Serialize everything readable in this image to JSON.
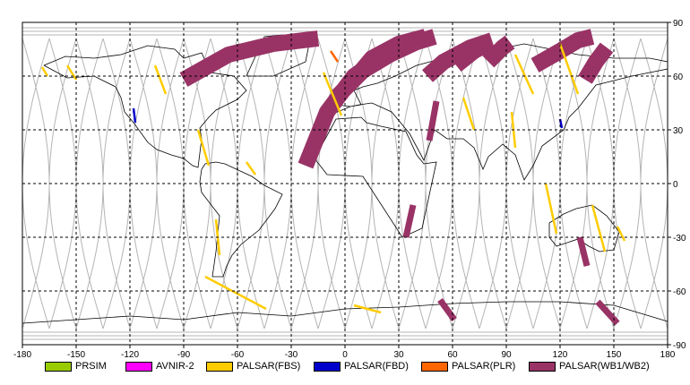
{
  "axes": {
    "x_ticks": [
      "-180",
      "-150",
      "-120",
      "-90",
      "-60",
      "-30",
      "0",
      "30",
      "60",
      "90",
      "120",
      "150",
      "180"
    ],
    "y_ticks": [
      "90",
      "60",
      "30",
      "0",
      "-30",
      "-60",
      "-90"
    ],
    "lon_range": [
      -180,
      180
    ],
    "lat_range": [
      -90,
      90
    ],
    "grid": "dashed"
  },
  "legend": [
    {
      "label": "PRSIM",
      "color": "#99cc00"
    },
    {
      "label": "AVNIR-2",
      "color": "#ff00ff"
    },
    {
      "label": "PALSAR(FBS)",
      "color": "#ffcc00"
    },
    {
      "label": "PALSAR(FBD)",
      "color": "#0000cc"
    },
    {
      "label": "PALSAR(PLR)",
      "color": "#ff6600"
    },
    {
      "label": "PALSAR(WB1/WB2)",
      "color": "#993366"
    }
  ],
  "colors": {
    "coastline": "#000000",
    "orbit_track": "#b4b4b4",
    "grid": "#000000"
  },
  "chart_data": {
    "type": "map",
    "projection": "equirectangular",
    "wb_swaths": [
      {
        "lon": [
          -90,
          -65,
          -40,
          -15
        ],
        "lat": [
          58,
          72,
          78,
          81
        ]
      },
      {
        "lon": [
          -22,
          -10,
          5,
          25,
          40,
          45
        ],
        "lat": [
          10,
          40,
          60,
          74,
          80,
          82
        ]
      },
      {
        "lon": [
          -5,
          10,
          25,
          40,
          50
        ],
        "lat": [
          48,
          63,
          72,
          79,
          82
        ]
      },
      {
        "lon": [
          5,
          15,
          30,
          45
        ],
        "lat": [
          58,
          70,
          78,
          82
        ]
      },
      {
        "lon": [
          46,
          55,
          70,
          82
        ],
        "lat": [
          60,
          68,
          76,
          80
        ]
      },
      {
        "lon": [
          62,
          72,
          80
        ],
        "lat": [
          66,
          74,
          78
        ]
      },
      {
        "lon": [
          80,
          88,
          92
        ],
        "lat": [
          68,
          76,
          79
        ]
      },
      {
        "lon": [
          106,
          120,
          130,
          138
        ],
        "lat": [
          66,
          74,
          80,
          82
        ]
      },
      {
        "lon": [
          134,
          140,
          146
        ],
        "lat": [
          58,
          68,
          76
        ]
      }
    ],
    "wb_short_segments": [
      {
        "lon": [
          47,
          51
        ],
        "lat": [
          24,
          46
        ]
      },
      {
        "lon": [
          34,
          38
        ],
        "lat": [
          -30,
          -12
        ]
      },
      {
        "lon": [
          53,
          61
        ],
        "lat": [
          -65,
          -76
        ]
      },
      {
        "lon": [
          141,
          152
        ],
        "lat": [
          -66,
          -78
        ]
      },
      {
        "lon": [
          131,
          135
        ],
        "lat": [
          -30,
          -46
        ]
      }
    ],
    "fbs_segments": [
      {
        "lon": [
          -169,
          -166
        ],
        "lat": [
          65,
          60
        ]
      },
      {
        "lon": [
          -155,
          -150
        ],
        "lat": [
          66,
          58
        ]
      },
      {
        "lon": [
          -106,
          -100
        ],
        "lat": [
          66,
          50
        ]
      },
      {
        "lon": [
          -82,
          -76
        ],
        "lat": [
          30,
          10
        ]
      },
      {
        "lon": [
          -55,
          -50
        ],
        "lat": [
          12,
          5
        ]
      },
      {
        "lon": [
          -72,
          -70
        ],
        "lat": [
          -20,
          -40
        ]
      },
      {
        "lon": [
          -78,
          -44
        ],
        "lat": [
          -52,
          -70
        ]
      },
      {
        "lon": [
          -12,
          -2
        ],
        "lat": [
          62,
          38
        ]
      },
      {
        "lon": [
          93,
          95
        ],
        "lat": [
          40,
          20
        ]
      },
      {
        "lon": [
          112,
          118
        ],
        "lat": [
          0,
          -28
        ]
      },
      {
        "lon": [
          138,
          145
        ],
        "lat": [
          -12,
          -38
        ]
      },
      {
        "lon": [
          120,
          130
        ],
        "lat": [
          78,
          50
        ]
      },
      {
        "lon": [
          95,
          105
        ],
        "lat": [
          72,
          50
        ]
      },
      {
        "lon": [
          66,
          72
        ],
        "lat": [
          48,
          30
        ]
      },
      {
        "lon": [
          152,
          156
        ],
        "lat": [
          -24,
          -32
        ]
      },
      {
        "lon": [
          5,
          20
        ],
        "lat": [
          -68,
          -72
        ]
      }
    ],
    "fbd_segments": [
      {
        "lon": [
          -118,
          -117
        ],
        "lat": [
          42,
          34
        ]
      },
      {
        "lon": [
          120,
          121
        ],
        "lat": [
          36,
          31
        ]
      }
    ],
    "plr_segments": [
      {
        "lon": [
          -8,
          -4
        ],
        "lat": [
          74,
          68
        ]
      }
    ],
    "coastlines": [
      {
        "lon": [
          -168,
          -155,
          -140,
          -128,
          -125,
          -123,
          -118,
          -110,
          -105,
          -97,
          -90,
          -85,
          -82,
          -80,
          -81,
          -76,
          -72,
          -66,
          -60,
          -55,
          -62,
          -75,
          -80,
          -90,
          -95,
          -110,
          -125,
          -140,
          -156,
          -168
        ],
        "lat": [
          66,
          59,
          60,
          54,
          48,
          40,
          34,
          23,
          19,
          16,
          14,
          10,
          9,
          25,
          31,
          37,
          41,
          44,
          47,
          52,
          60,
          62,
          73,
          70,
          75,
          77,
          72,
          70,
          71,
          66
        ]
      },
      {
        "lon": [
          -80,
          -78,
          -72,
          -67,
          -52,
          -45,
          -35,
          -39,
          -48,
          -58,
          -63,
          -66,
          -68,
          -74,
          -72,
          -70,
          -80,
          -81,
          -80
        ],
        "lat": [
          8,
          11,
          12,
          11,
          4,
          -1,
          -6,
          -14,
          -26,
          -34,
          -40,
          -46,
          -52,
          -52,
          -38,
          -18,
          -5,
          1,
          8
        ]
      },
      {
        "lon": [
          -55,
          -40,
          -22,
          -20,
          -35,
          -45,
          -55
        ],
        "lat": [
          60,
          60,
          68,
          78,
          83,
          82,
          60
        ]
      },
      {
        "lon": [
          -17,
          -10,
          10,
          32,
          43,
          51,
          44,
          40,
          34,
          20,
          12,
          9,
          -5,
          -17
        ],
        "lat": [
          14,
          5,
          4,
          -30,
          -25,
          12,
          11,
          16,
          29,
          32,
          34,
          37,
          36,
          14
        ]
      },
      {
        "lon": [
          -9,
          -5,
          3,
          9,
          5,
          10,
          18,
          28,
          40,
          55,
          70,
          80,
          90,
          100,
          110,
          130,
          150,
          170,
          180,
          180,
          160,
          140,
          130,
          125,
          122,
          110,
          105,
          100,
          95,
          88,
          80,
          77,
          72,
          66,
          57,
          50,
          44,
          36,
          26,
          15,
          8,
          3,
          -9
        ],
        "lat": [
          38,
          44,
          43,
          44,
          52,
          54,
          56,
          60,
          66,
          70,
          73,
          73,
          76,
          78,
          76,
          72,
          70,
          70,
          68,
          64,
          60,
          55,
          42,
          37,
          30,
          21,
          10,
          2,
          16,
          22,
          15,
          8,
          20,
          25,
          25,
          30,
          13,
          28,
          40,
          45,
          44,
          43,
          38
        ]
      },
      {
        "lon": [
          114,
          122,
          129,
          138,
          146,
          153,
          150,
          142,
          136,
          130,
          118,
          114,
          114
        ],
        "lat": [
          -22,
          -17,
          -14,
          -12,
          -18,
          -27,
          -37,
          -38,
          -35,
          -31,
          -35,
          -30,
          -22
        ]
      },
      {
        "lon": [
          -180,
          -150,
          -120,
          -90,
          -60,
          -30,
          0,
          30,
          60,
          90,
          120,
          150,
          180
        ],
        "lat": [
          -78,
          -76,
          -74,
          -76,
          -72,
          -74,
          -70,
          -69,
          -67,
          -66,
          -66,
          -68,
          -77
        ]
      }
    ]
  }
}
